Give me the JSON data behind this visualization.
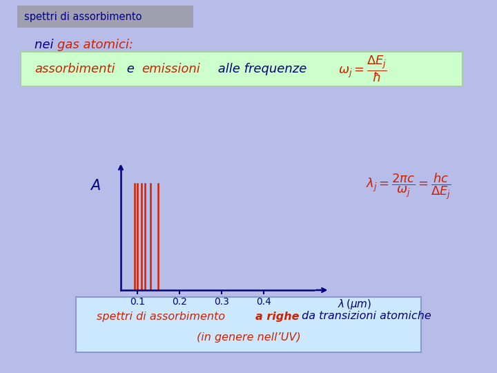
{
  "bg_color": "#b8bce8",
  "title_box_color": "#a0a0b0",
  "title_text": "spettri di assorbimento",
  "title_text_color": "#000080",
  "subtitle_color_nei": "#000080",
  "subtitle_color_gas": "#cc2200",
  "green_box_color": "#ccffcc",
  "green_box_edge": "#aaccaa",
  "formula1_color": "#cc2200",
  "absorption_lines": [
    0.093,
    0.1,
    0.109,
    0.118,
    0.13,
    0.148
  ],
  "line_color": "#cc2200",
  "axis_color": "#000080",
  "xticks": [
    0.1,
    0.2,
    0.3,
    0.4
  ],
  "formula2_color": "#cc2200",
  "bottom_box_color": "#cce8ff",
  "bottom_box_edge": "#8899cc",
  "bottom_color1": "#cc2200",
  "bottom_color2": "#cc2200",
  "bottom_color3": "#000080",
  "bottom_color4": "#cc2200"
}
